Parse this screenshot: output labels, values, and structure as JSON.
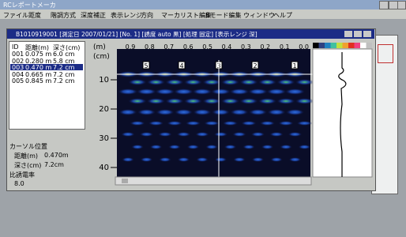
{
  "app": {
    "title": "RCレポートメーカ",
    "menu": [
      "ファイル",
      "距度",
      "階調方式",
      "深度補正",
      "表示レンジ",
      "方向",
      "マーカリスト編集",
      "Bモード編集",
      "ウィンドウ",
      "ヘルプ"
    ]
  },
  "window": {
    "title": "B1010919001 [測定日 2007/01/21] [No. 1] [誘度 auto 黒] [処理 固定] [表示レンジ 深]"
  },
  "marker_list": {
    "headers": [
      "ID",
      "距離(m)",
      "深さ(cm)"
    ],
    "rows": [
      [
        "001",
        "0.075 m",
        "6.0 cm"
      ],
      [
        "002",
        "0.280 m",
        "5.8 cm"
      ],
      [
        "003",
        "0.470 m",
        "7.2 cm"
      ],
      [
        "004",
        "0.665 m",
        "7.2 cm"
      ],
      [
        "005",
        "0.845 m",
        "7.2 cm"
      ]
    ]
  },
  "cursor": {
    "title": "カーソル位置",
    "distance_label": "距離(m)",
    "distance": "0.470m",
    "depth_label": "深さ(cm)",
    "depth": "7.2cm",
    "permittivity_label": "比誘電率",
    "permittivity": "8.0"
  },
  "bscan": {
    "x_unit": "(m)",
    "x_ticks": [
      "0.9",
      "0.8",
      "0.7",
      "0.6",
      "0.5",
      "0.4",
      "0.3",
      "0.2",
      "0.1",
      "0.0"
    ],
    "y_unit": "(cm)",
    "y_ticks": [
      "10",
      "20",
      "30",
      "40"
    ],
    "markers": [
      "5",
      "4",
      "3",
      "2",
      "1"
    ]
  }
}
